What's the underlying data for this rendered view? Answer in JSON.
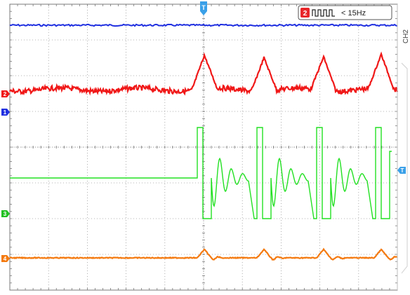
{
  "trigger_status": {
    "channel_badge": "2",
    "condition_text": "< 15Hz"
  },
  "side_panel": {
    "channel_label": "CH2"
  },
  "channel_markers": {
    "ch1": "1",
    "ch2": "2",
    "ch3": "3",
    "ch4": "4",
    "trigger_top": "T",
    "trigger_level": "T"
  },
  "colors": {
    "ch1": "#1f2fe0",
    "ch2": "#f01818",
    "ch3": "#22e022",
    "ch4": "#f47a10",
    "grid": "#8a8a8a",
    "trigger": "#3aa0e8"
  },
  "icons": {
    "trigger_mode": "square-wave-icon"
  }
}
